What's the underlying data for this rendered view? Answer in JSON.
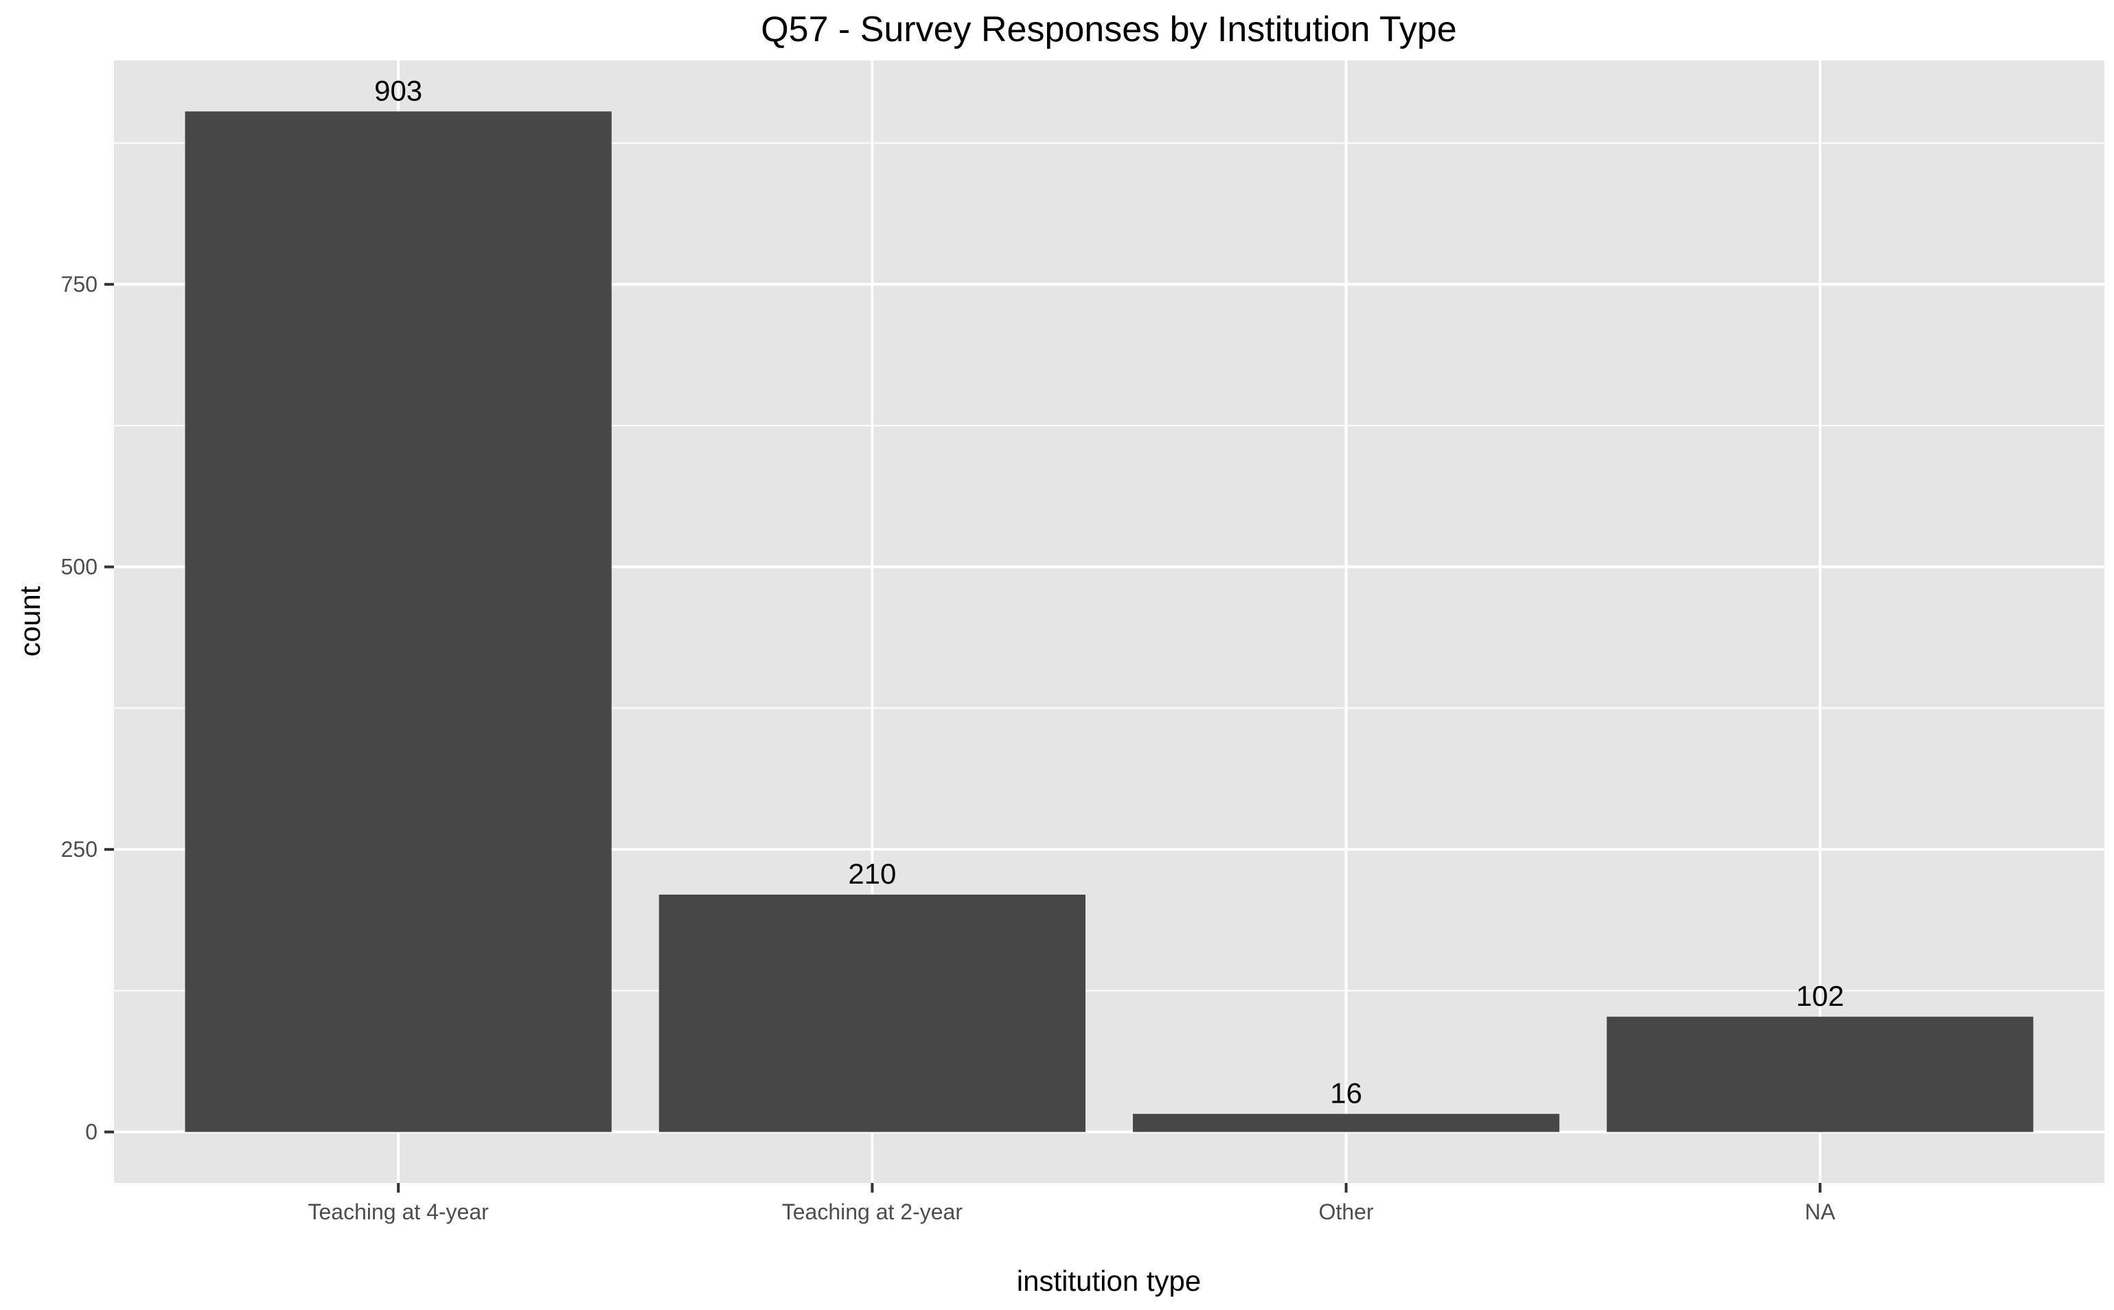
{
  "chart_data": {
    "type": "bar",
    "title": "Q57 - Survey Responses by Institution Type",
    "xlabel": "institution type",
    "ylabel": "count",
    "categories": [
      "Teaching at 4-year",
      "Teaching at 2-year",
      "Other",
      "NA"
    ],
    "values": [
      903,
      210,
      16,
      102
    ],
    "data_labels": [
      "903",
      "210",
      "16",
      "102"
    ],
    "yticks": [
      0,
      250,
      500,
      750
    ],
    "ytick_labels": [
      "0",
      "250",
      "500",
      "750"
    ],
    "ylim": [
      -45.15,
      948.15
    ],
    "grid": true,
    "legend": "none",
    "colors": {
      "bar": "#474747",
      "panel": "#e5e5e5",
      "grid": "#ffffff",
      "tick": "#333333"
    }
  }
}
